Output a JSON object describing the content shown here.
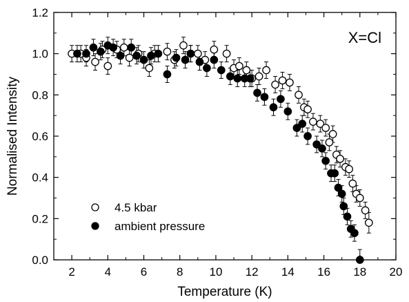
{
  "chart_data": {
    "type": "scatter",
    "xlabel": "Temperature (K)",
    "ylabel": "Normalised Intensity",
    "xlim": [
      1,
      20
    ],
    "ylim": [
      0,
      1.2
    ],
    "xticks": [
      "2",
      "4",
      "6",
      "8",
      "10",
      "12",
      "14",
      "16",
      "18",
      "20"
    ],
    "yticks": [
      "0.0",
      "0.2",
      "0.4",
      "0.6",
      "0.8",
      "1.0",
      "1.2"
    ],
    "annotation": "X=Cl",
    "legend_position": "bottom-left",
    "grid": false,
    "series": [
      {
        "name": "4.5 kbar",
        "marker": "open-circle",
        "points": [
          [
            2.0,
            1.0,
            0.04
          ],
          [
            2.5,
            1.0,
            0.04
          ],
          [
            2.8,
            0.98,
            0.04
          ],
          [
            3.3,
            0.96,
            0.04
          ],
          [
            3.7,
            1.02,
            0.04
          ],
          [
            4.0,
            0.94,
            0.04
          ],
          [
            4.5,
            1.02,
            0.04
          ],
          [
            4.9,
            1.03,
            0.04
          ],
          [
            5.2,
            0.98,
            0.04
          ],
          [
            5.7,
            1.0,
            0.04
          ],
          [
            6.3,
            0.93,
            0.04
          ],
          [
            6.6,
            1.0,
            0.04
          ],
          [
            7.3,
            1.01,
            0.04
          ],
          [
            7.7,
            0.97,
            0.04
          ],
          [
            8.2,
            1.04,
            0.04
          ],
          [
            8.6,
            1.0,
            0.04
          ],
          [
            9.0,
            1.0,
            0.04
          ],
          [
            9.4,
            0.97,
            0.04
          ],
          [
            9.9,
            1.02,
            0.04
          ],
          [
            10.6,
            1.0,
            0.04
          ],
          [
            11.0,
            0.93,
            0.04
          ],
          [
            11.3,
            0.94,
            0.04
          ],
          [
            11.7,
            0.92,
            0.04
          ],
          [
            12.0,
            0.88,
            0.04
          ],
          [
            12.4,
            0.89,
            0.04
          ],
          [
            12.8,
            0.92,
            0.04
          ],
          [
            13.3,
            0.85,
            0.04
          ],
          [
            13.7,
            0.87,
            0.04
          ],
          [
            14.1,
            0.86,
            0.04
          ],
          [
            14.6,
            0.8,
            0.04
          ],
          [
            14.9,
            0.74,
            0.04
          ],
          [
            15.1,
            0.73,
            0.04
          ],
          [
            15.4,
            0.67,
            0.04
          ],
          [
            15.8,
            0.66,
            0.04
          ],
          [
            16.1,
            0.64,
            0.04
          ],
          [
            16.3,
            0.57,
            0.04
          ],
          [
            16.5,
            0.61,
            0.04
          ],
          [
            16.7,
            0.51,
            0.04
          ],
          [
            16.9,
            0.49,
            0.04
          ],
          [
            17.2,
            0.45,
            0.04
          ],
          [
            17.4,
            0.44,
            0.04
          ],
          [
            17.6,
            0.37,
            0.04
          ],
          [
            17.8,
            0.32,
            0.04
          ],
          [
            18.0,
            0.3,
            0.04
          ],
          [
            18.3,
            0.24,
            0.04
          ],
          [
            18.5,
            0.18,
            0.05
          ]
        ]
      },
      {
        "name": "ambient pressure",
        "marker": "filled-circle",
        "points": [
          [
            2.3,
            1.0,
            0.04
          ],
          [
            2.8,
            1.0,
            0.04
          ],
          [
            3.2,
            1.03,
            0.04
          ],
          [
            3.6,
            1.01,
            0.04
          ],
          [
            4.0,
            1.04,
            0.04
          ],
          [
            4.3,
            1.03,
            0.04
          ],
          [
            4.7,
            0.99,
            0.04
          ],
          [
            5.3,
            1.03,
            0.04
          ],
          [
            5.6,
            0.99,
            0.04
          ],
          [
            6.0,
            0.97,
            0.04
          ],
          [
            6.4,
            0.99,
            0.04
          ],
          [
            6.8,
            1.0,
            0.04
          ],
          [
            7.3,
            0.9,
            0.04
          ],
          [
            7.8,
            0.98,
            0.04
          ],
          [
            8.3,
            0.97,
            0.04
          ],
          [
            8.6,
            1.0,
            0.04
          ],
          [
            9.1,
            0.96,
            0.04
          ],
          [
            9.5,
            0.93,
            0.04
          ],
          [
            9.9,
            0.97,
            0.04
          ],
          [
            10.3,
            0.92,
            0.04
          ],
          [
            10.8,
            0.89,
            0.04
          ],
          [
            11.2,
            0.88,
            0.04
          ],
          [
            11.6,
            0.88,
            0.04
          ],
          [
            11.9,
            0.88,
            0.04
          ],
          [
            12.3,
            0.81,
            0.04
          ],
          [
            12.7,
            0.79,
            0.04
          ],
          [
            13.2,
            0.74,
            0.04
          ],
          [
            13.6,
            0.78,
            0.04
          ],
          [
            14.0,
            0.72,
            0.04
          ],
          [
            14.5,
            0.64,
            0.04
          ],
          [
            14.8,
            0.66,
            0.04
          ],
          [
            15.1,
            0.6,
            0.04
          ],
          [
            15.6,
            0.56,
            0.04
          ],
          [
            15.9,
            0.54,
            0.04
          ],
          [
            16.1,
            0.48,
            0.04
          ],
          [
            16.4,
            0.42,
            0.04
          ],
          [
            16.6,
            0.42,
            0.04
          ],
          [
            16.8,
            0.35,
            0.04
          ],
          [
            17.0,
            0.32,
            0.04
          ],
          [
            17.1,
            0.26,
            0.04
          ],
          [
            17.3,
            0.21,
            0.04
          ],
          [
            17.5,
            0.15,
            0.04
          ],
          [
            17.7,
            0.13,
            0.04
          ],
          [
            18.0,
            0.0,
            0.05
          ]
        ]
      }
    ]
  }
}
